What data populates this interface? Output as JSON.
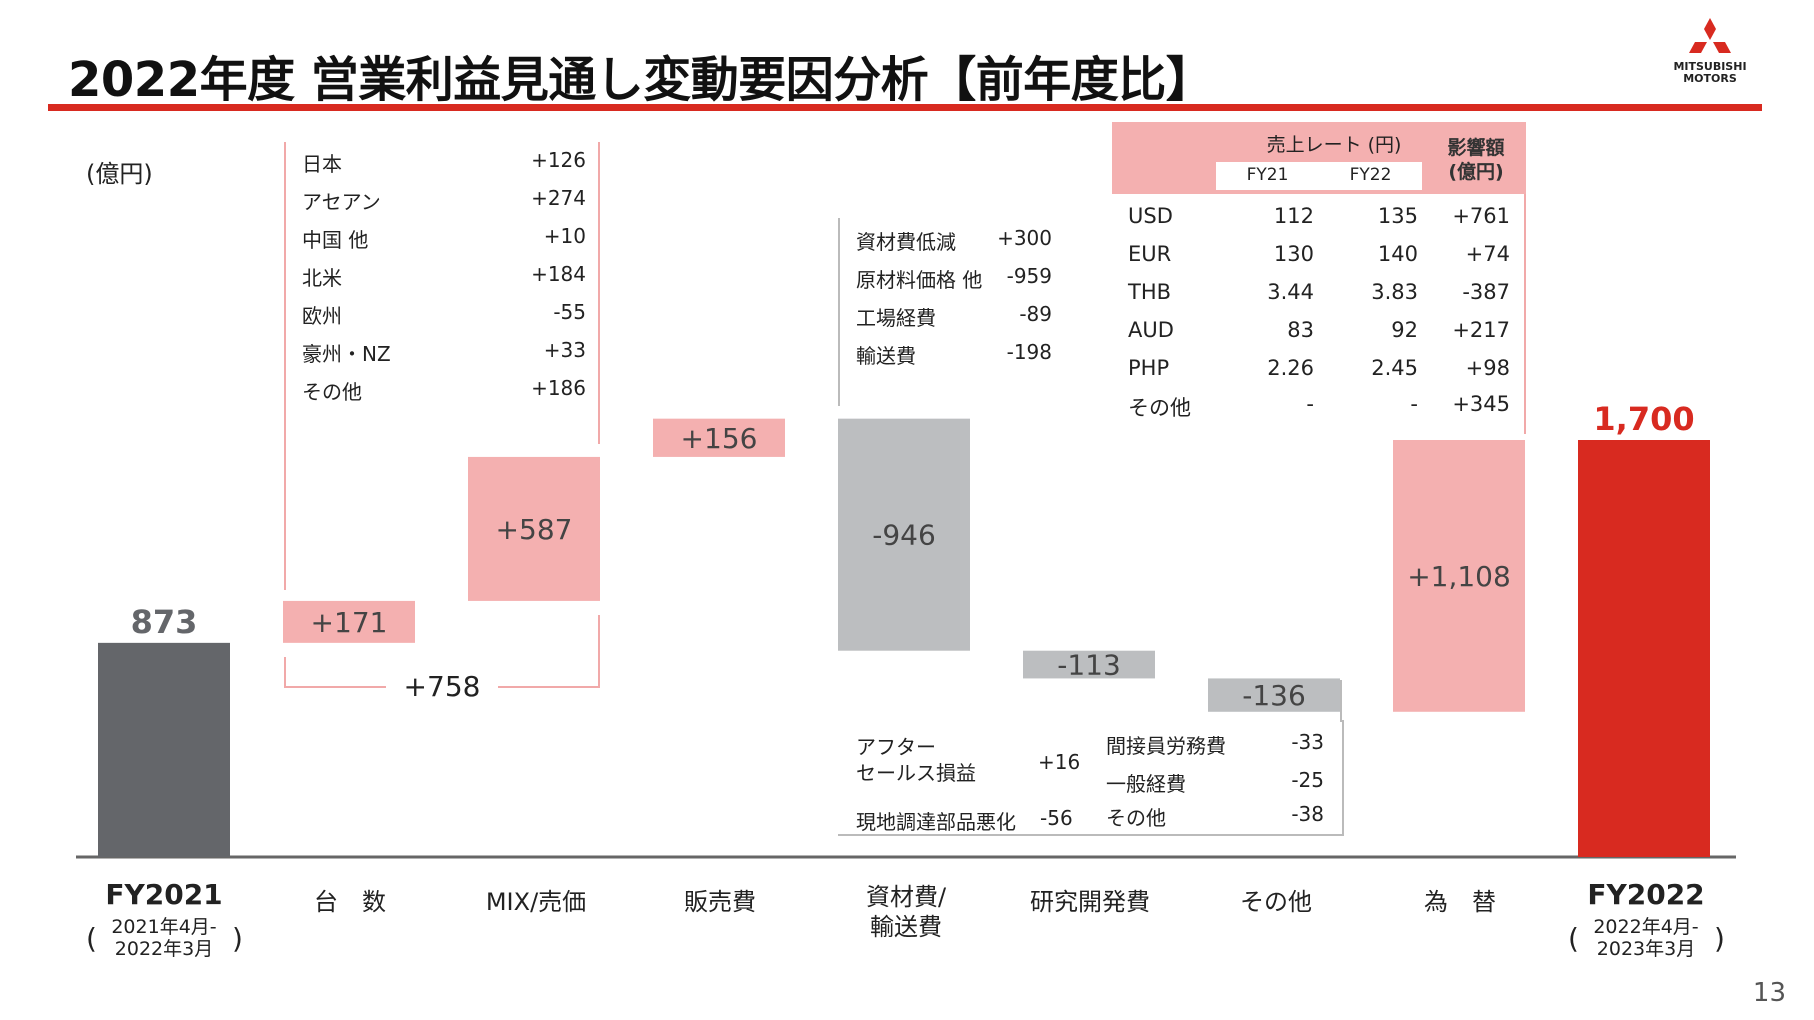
{
  "title": "2022年度 営業利益見通し変動要因分析【前年度比】",
  "unit": "(億円)",
  "page_number": "13",
  "logo": {
    "line1": "MITSUBISHI",
    "line2": "MOTORS"
  },
  "colors": {
    "red": "#d82a20",
    "pink": "#f4b0b0",
    "gray": "#bcbec0",
    "dark": "#64666a"
  },
  "chart_data": {
    "type": "bar",
    "subtype": "waterfall",
    "categories": [
      "FY2021",
      "台　数",
      "MIX/売価",
      "販売費",
      "資材費/輸送費",
      "研究開発費",
      "その他",
      "為　替",
      "FY2022"
    ],
    "values": [
      873,
      171,
      587,
      156,
      -946,
      -113,
      -136,
      1108,
      1700
    ],
    "value_labels": [
      "873",
      "+171",
      "+587",
      "+156",
      "-946",
      "-113",
      "-136",
      "+1,108",
      "1,700"
    ],
    "kinds": [
      "total",
      "up",
      "up",
      "up",
      "down",
      "down",
      "down",
      "up",
      "total"
    ],
    "ylim": [
      -500,
      1800
    ],
    "subtotal": {
      "label": "+758",
      "from_category": 1,
      "to_category": 2
    }
  },
  "axis_labels": {
    "fy2021": {
      "name": "FY2021",
      "p1": "2021年4月-",
      "p2": "2022年3月"
    },
    "fy2022": {
      "name": "FY2022",
      "p1": "2022年4月-",
      "p2": "2023年3月"
    },
    "units": "台　数",
    "mix": "MIX/売価",
    "sales": "販売費",
    "material_1": "資材費/",
    "material_2": "輸送費",
    "rd": "研究開発費",
    "other": "その他",
    "fx": "為　替",
    "paren_open": "(",
    "paren_close": ")"
  },
  "volume_breakdown": [
    {
      "label": "日本",
      "value": "+126"
    },
    {
      "label": "アセアン",
      "value": "+274"
    },
    {
      "label": "中国 他",
      "value": "+10"
    },
    {
      "label": "北米",
      "value": "+184"
    },
    {
      "label": "欧州",
      "value": "-55"
    },
    {
      "label": "豪州・NZ",
      "value": "+33"
    },
    {
      "label": "その他",
      "value": "+186"
    }
  ],
  "material_breakdown": [
    {
      "label": "資材費低減",
      "value": "+300"
    },
    {
      "label": "原材料価格 他",
      "value": "-959"
    },
    {
      "label": "工場経費",
      "value": "-89"
    },
    {
      "label": "輸送費",
      "value": "-198"
    }
  ],
  "rd_breakdown": {
    "item1_line1": "アフター",
    "item1_line2": "セールス損益",
    "item1_value": "+16",
    "item2_label": "現地調達部品悪化",
    "item2_value": "-56"
  },
  "other_breakdown": [
    {
      "label": "間接員労務費",
      "value": "-33"
    },
    {
      "label": "一般経費",
      "value": "-25"
    },
    {
      "label": "その他",
      "value": "-38"
    }
  ],
  "fx_table": {
    "rate_header": "売上レート (円)",
    "impact_header_1": "影響額",
    "impact_header_2": "(億円)",
    "col_fy21": "FY21",
    "col_fy22": "FY22",
    "rows": [
      {
        "ccy": "USD",
        "fy21": "112",
        "fy22": "135",
        "impact": "+761"
      },
      {
        "ccy": "EUR",
        "fy21": "130",
        "fy22": "140",
        "impact": "+74"
      },
      {
        "ccy": "THB",
        "fy21": "3.44",
        "fy22": "3.83",
        "impact": "-387"
      },
      {
        "ccy": "AUD",
        "fy21": "83",
        "fy22": "92",
        "impact": "+217"
      },
      {
        "ccy": "PHP",
        "fy21": "2.26",
        "fy22": "2.45",
        "impact": "+98"
      },
      {
        "ccy": "その他",
        "fy21": "-",
        "fy22": "-",
        "impact": "+345"
      }
    ]
  }
}
